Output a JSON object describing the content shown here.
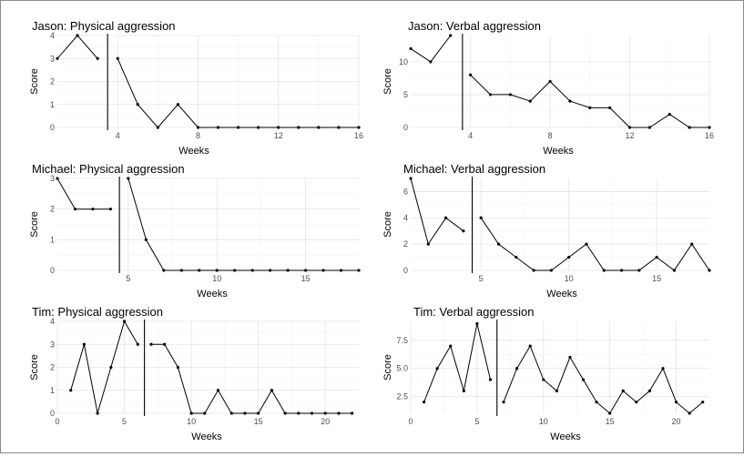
{
  "chart_data": [
    {
      "type": "line",
      "title": "Jason: Physical aggression",
      "xlabel": "Weeks",
      "ylabel": "Score",
      "xlim": [
        1,
        16
      ],
      "ylim": [
        0,
        4
      ],
      "xticks": [
        4,
        8,
        12,
        16
      ],
      "yticks": [
        0,
        1,
        2,
        3,
        4
      ],
      "phase_line_x": 3.5,
      "phases": [
        {
          "x": [
            1,
            2,
            3
          ],
          "y": [
            3,
            4,
            3
          ]
        },
        {
          "x": [
            4,
            5,
            6,
            7,
            8,
            9,
            10,
            11,
            12,
            13,
            14,
            15,
            16
          ],
          "y": [
            3,
            1,
            0,
            1,
            0,
            0,
            0,
            0,
            0,
            0,
            0,
            0,
            0
          ]
        }
      ]
    },
    {
      "type": "line",
      "title": "Jason: Verbal aggression",
      "xlabel": "Weeks",
      "ylabel": "Score",
      "xlim": [
        1,
        16
      ],
      "ylim": [
        0,
        14
      ],
      "xticks": [
        4,
        8,
        12,
        16
      ],
      "yticks": [
        0,
        5,
        10
      ],
      "phase_line_x": 3.6,
      "phases": [
        {
          "x": [
            1,
            2,
            3
          ],
          "y": [
            12,
            10,
            14
          ]
        },
        {
          "x": [
            4,
            5,
            6,
            7,
            8,
            9,
            10,
            11,
            12,
            13,
            14,
            15,
            16
          ],
          "y": [
            8,
            5,
            5,
            4,
            7,
            4,
            3,
            3,
            0,
            0,
            2,
            0,
            0
          ]
        }
      ]
    },
    {
      "type": "line",
      "title": "Michael: Physical aggression",
      "xlabel": "Weeks",
      "ylabel": "Score",
      "xlim": [
        1,
        18
      ],
      "ylim": [
        0,
        3
      ],
      "xticks": [
        5,
        10,
        15
      ],
      "yticks": [
        0,
        1,
        2,
        3
      ],
      "phase_line_x": 4.5,
      "phases": [
        {
          "x": [
            1,
            2,
            3,
            4
          ],
          "y": [
            3,
            2,
            2,
            2
          ]
        },
        {
          "x": [
            5,
            6,
            7,
            8,
            9,
            10,
            11,
            12,
            13,
            14,
            15,
            16,
            17,
            18
          ],
          "y": [
            3,
            1,
            0,
            0,
            0,
            0,
            0,
            0,
            0,
            0,
            0,
            0,
            0,
            0
          ]
        }
      ]
    },
    {
      "type": "line",
      "title": "Michael: Verbal aggression",
      "xlabel": "Weeks",
      "ylabel": "Score",
      "xlim": [
        1,
        18
      ],
      "ylim": [
        0,
        7
      ],
      "xticks": [
        5,
        10,
        15
      ],
      "yticks": [
        0,
        2,
        4,
        6
      ],
      "phase_line_x": 4.5,
      "phases": [
        {
          "x": [
            1,
            2,
            3,
            4
          ],
          "y": [
            7,
            2,
            4,
            3
          ]
        },
        {
          "x": [
            5,
            6,
            7,
            8,
            9,
            10,
            11,
            12,
            13,
            14,
            15,
            16,
            17,
            18
          ],
          "y": [
            4,
            2,
            1,
            0,
            0,
            1,
            2,
            0,
            0,
            0,
            1,
            0,
            2,
            0
          ]
        }
      ]
    },
    {
      "type": "line",
      "title": "Tim: Physical aggression",
      "xlabel": "Weeks",
      "ylabel": "Score",
      "xlim": [
        0,
        22.5
      ],
      "ylim": [
        0,
        4
      ],
      "xticks": [
        0,
        5,
        10,
        15,
        20
      ],
      "yticks": [
        0,
        1,
        2,
        3,
        4
      ],
      "phase_line_x": 6.5,
      "phases": [
        {
          "x": [
            1,
            2,
            3,
            4,
            5,
            6
          ],
          "y": [
            1,
            3,
            0,
            2,
            4,
            3
          ]
        },
        {
          "x": [
            7,
            8,
            9,
            10,
            11,
            12,
            13,
            14,
            15,
            16,
            17,
            18,
            19,
            20,
            21,
            22
          ],
          "y": [
            3,
            3,
            2,
            0,
            0,
            1,
            0,
            0,
            0,
            1,
            0,
            0,
            0,
            0,
            0,
            0
          ]
        }
      ]
    },
    {
      "type": "line",
      "title": "Tim: Verbal aggression",
      "xlabel": "Weeks",
      "ylabel": "Score",
      "xlim": [
        0,
        22.5
      ],
      "ylim": [
        1,
        9.2
      ],
      "xticks": [
        0,
        5,
        10,
        15,
        20
      ],
      "yticks": [
        2.5,
        5.0,
        7.5
      ],
      "ytick_labels": [
        "2.5",
        "5.0",
        "7.5"
      ],
      "phase_line_x": 6.5,
      "phases": [
        {
          "x": [
            1,
            2,
            3,
            4,
            5,
            6
          ],
          "y": [
            2,
            5,
            7,
            3,
            9,
            4
          ]
        },
        {
          "x": [
            7,
            8,
            9,
            10,
            11,
            12,
            13,
            14,
            15,
            16,
            17,
            18,
            19,
            20,
            21,
            22
          ],
          "y": [
            2,
            5,
            7,
            4,
            3,
            6,
            4,
            2,
            1,
            3,
            2,
            3,
            5,
            2,
            1,
            2
          ]
        }
      ]
    }
  ]
}
